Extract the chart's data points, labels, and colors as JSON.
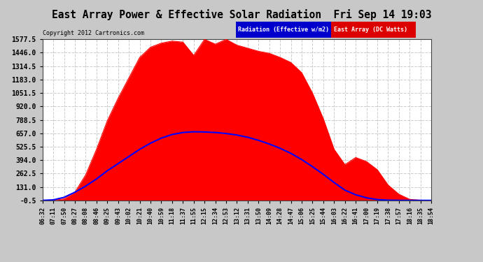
{
  "title": "East Array Power & Effective Solar Radiation  Fri Sep 14 19:03",
  "copyright": "Copyright 2012 Cartronics.com",
  "legend_radiation": "Radiation (Effective w/m2)",
  "legend_east_array": "East Array (DC Watts)",
  "y_min": -0.5,
  "y_max": 1577.5,
  "y_ticks": [
    -0.5,
    131.0,
    262.5,
    394.0,
    525.5,
    657.0,
    788.5,
    920.0,
    1051.5,
    1183.0,
    1314.5,
    1446.0,
    1577.5
  ],
  "background_color": "#c8c8c8",
  "plot_bg_color": "#ffffff",
  "grid_color": "#aaaaaa",
  "red_fill_color": "#ff0000",
  "blue_line_color": "#0000ff",
  "title_color": "#000000",
  "x_labels": [
    "06:32",
    "07:11",
    "07:50",
    "08:27",
    "08:08",
    "08:46",
    "09:25",
    "09:43",
    "10:02",
    "10:21",
    "10:40",
    "10:59",
    "11:18",
    "11:37",
    "11:55",
    "12:15",
    "12:34",
    "12:53",
    "13:12",
    "13:31",
    "13:50",
    "14:09",
    "14:28",
    "14:47",
    "15:06",
    "15:25",
    "15:44",
    "16:03",
    "16:22",
    "16:41",
    "17:00",
    "17:19",
    "17:38",
    "17:57",
    "18:16",
    "18:35",
    "18:54"
  ],
  "east_array": [
    0,
    2,
    15,
    80,
    250,
    500,
    780,
    1000,
    1200,
    1400,
    1500,
    1540,
    1560,
    1550,
    1420,
    1577,
    1530,
    1577,
    1520,
    1490,
    1460,
    1440,
    1400,
    1350,
    1250,
    1050,
    800,
    500,
    350,
    420,
    380,
    300,
    150,
    60,
    10,
    2,
    0
  ],
  "radiation": [
    0,
    5,
    30,
    80,
    140,
    210,
    290,
    360,
    430,
    500,
    560,
    610,
    645,
    665,
    672,
    670,
    665,
    655,
    640,
    618,
    588,
    552,
    510,
    460,
    400,
    330,
    255,
    175,
    100,
    55,
    25,
    8,
    2,
    0,
    0,
    0,
    0
  ]
}
